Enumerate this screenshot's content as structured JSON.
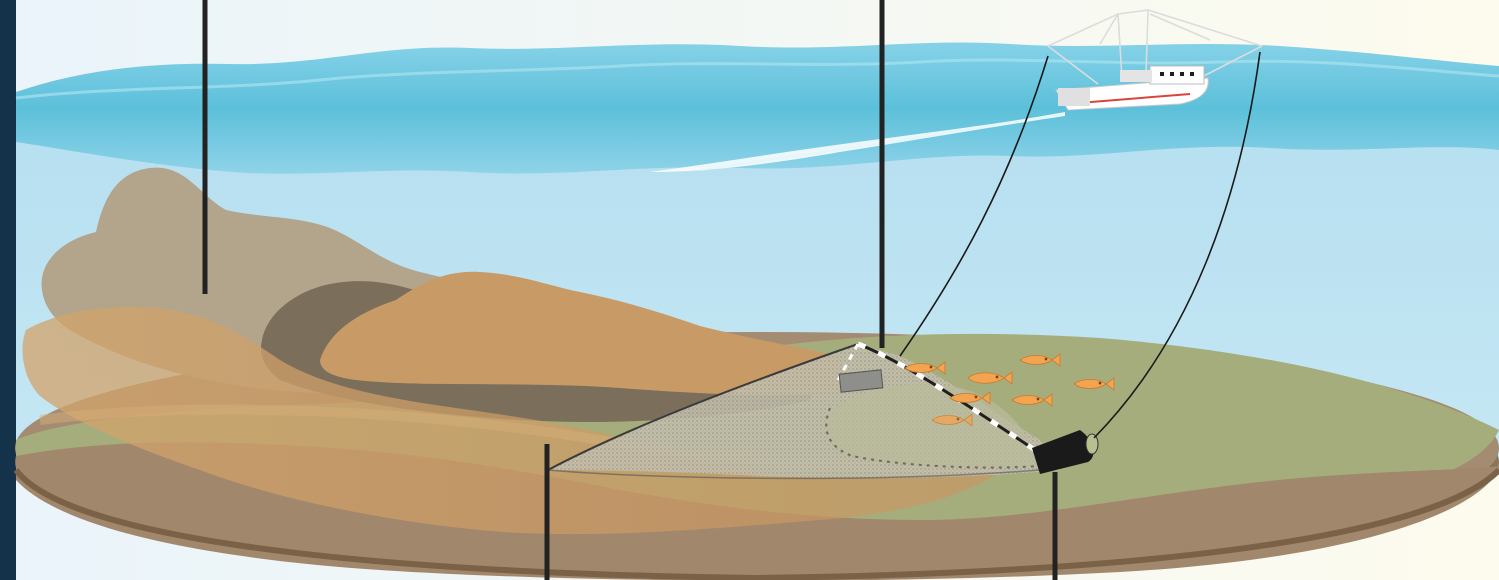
{
  "diagram": {
    "title": "",
    "labels": []
  },
  "colors": {
    "ocean_dark": "#0d2235",
    "sky": "#fbfcf3",
    "water": "#bfe3f2",
    "surface_wave": "#5fc3dc",
    "seabed_green": "#a7ae7d",
    "seabed_brown": "#a48c72",
    "sediment_plume": "#c99a62",
    "net_mesh": "#bfb9a8",
    "fish": "#f2a451",
    "boat_hull": "#ffffff",
    "boat_stripe": "#d9453a",
    "leader_line": "#222222"
  },
  "icons": {
    "vessel": "trawler-boat-icon",
    "fish": "fish-icon",
    "net": "trawl-net-icon"
  }
}
